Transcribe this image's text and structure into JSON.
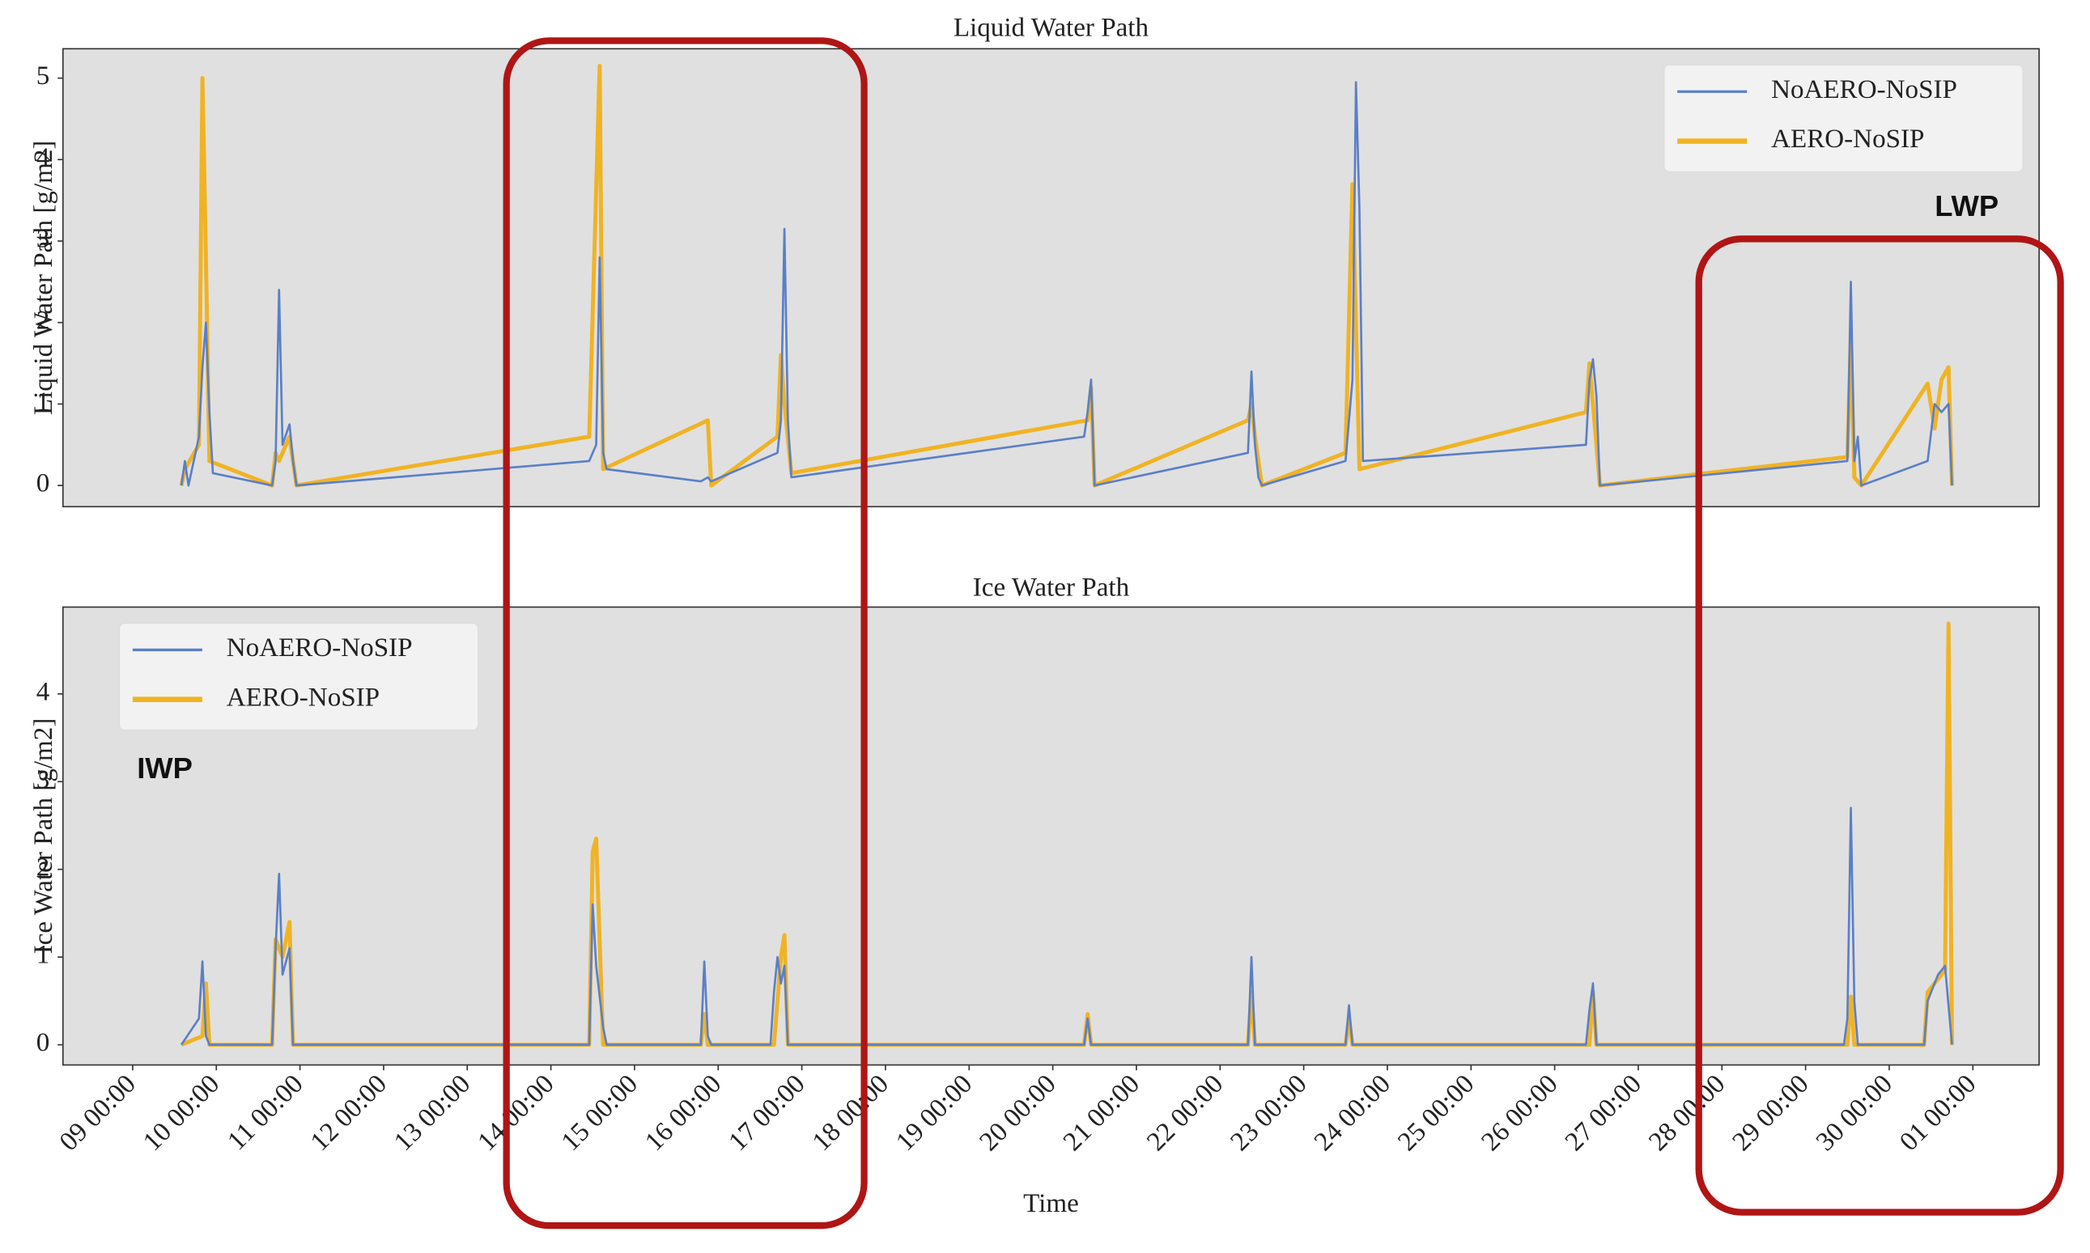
{
  "chart_data": [
    {
      "type": "line",
      "title": "Liquid Water Path",
      "y_label": "Liquid Water Path [g/m2]",
      "annotation": "LWP",
      "legend": "upper right",
      "xlim": [
        "08 04:00",
        "01 19:00"
      ],
      "ylim": [
        -0.26,
        5.36
      ],
      "yticks": [
        0,
        1,
        2,
        3,
        4,
        5
      ],
      "grid": false,
      "series": [
        {
          "name": "NoAERO-NoSIP",
          "color": "#5b7fc7",
          "x": [
            "09 14:00",
            "09 15:00",
            "09 16:00",
            "09 19:00",
            "09 20:00",
            "09 21:00",
            "09 22:00",
            "09 23:00",
            "10 16:00",
            "10 17:00",
            "10 18:00",
            "10 19:00",
            "10 21:00",
            "10 22:00",
            "10 23:00",
            "14 11:00",
            "14 13:00",
            "14 14:00",
            "14 15:00",
            "14 16:00",
            "15 19:00",
            "15 21:00",
            "15 22:00",
            "16 17:00",
            "16 18:00",
            "16 19:00",
            "16 20:00",
            "16 21:00",
            "20 09:00",
            "20 10:00",
            "20 11:00",
            "20 12:00",
            "22 08:00",
            "22 09:00",
            "22 10:00",
            "22 11:00",
            "22 12:00",
            "23 12:00",
            "23 14:00",
            "23 15:00",
            "23 16:00",
            "23 17:00",
            "26 09:00",
            "26 10:00",
            "26 11:00",
            "26 12:00",
            "26 13:00",
            "29 12:00",
            "29 13:00",
            "29 14:00",
            "29 15:00",
            "29 16:00",
            "30 11:00",
            "30 13:00",
            "30 15:00",
            "30 17:00",
            "30 18:00"
          ],
          "values": [
            0,
            0.3,
            0,
            0.6,
            1.45,
            2.0,
            0.9,
            0.15,
            0,
            0.3,
            2.4,
            0.5,
            0.75,
            0.3,
            0,
            0.3,
            0.5,
            2.8,
            0.4,
            0.2,
            0.05,
            0.1,
            0.05,
            0.4,
            0.8,
            3.15,
            0.8,
            0.1,
            0.6,
            0.9,
            1.3,
            0,
            0.4,
            1.4,
            0.5,
            0.1,
            0,
            0.3,
            1.3,
            4.95,
            3.4,
            0.3,
            0.5,
            1.3,
            1.55,
            1.1,
            0,
            0.3,
            2.5,
            0.3,
            0.6,
            0,
            0.3,
            1.0,
            0.9,
            1.0,
            0
          ]
        },
        {
          "name": "AERO-NoSIP",
          "color": "#f0b323",
          "x": [
            "09 14:00",
            "09 15:00",
            "09 19:00",
            "09 20:00",
            "09 21:00",
            "09 22:00",
            "10 16:00",
            "10 17:00",
            "10 18:00",
            "10 21:00",
            "10 23:00",
            "14 11:00",
            "14 14:00",
            "14 15:00",
            "15 21:00",
            "15 22:00",
            "16 17:00",
            "16 18:00",
            "16 19:00",
            "16 21:00",
            "20 10:00",
            "20 11:00",
            "20 12:00",
            "22 08:00",
            "22 09:00",
            "22 10:00",
            "22 12:00",
            "23 12:00",
            "23 14:00",
            "23 15:00",
            "23 16:00",
            "26 09:00",
            "26 10:00",
            "26 11:00",
            "26 13:00",
            "29 12:00",
            "29 13:00",
            "29 14:00",
            "29 16:00",
            "30 11:00",
            "30 13:00",
            "30 15:00",
            "30 17:00",
            "30 18:00"
          ],
          "values": [
            0,
            0.2,
            0.5,
            5.0,
            2.8,
            0.3,
            0,
            0.4,
            0.3,
            0.6,
            0,
            0.6,
            5.15,
            0.2,
            0.8,
            0,
            0.6,
            1.6,
            1.0,
            0.15,
            0.8,
            1.2,
            0,
            0.8,
            1.0,
            0.6,
            0,
            0.4,
            3.7,
            2.0,
            0.2,
            0.9,
            1.5,
            1.0,
            0,
            0.35,
            1.8,
            0.1,
            0,
            1.25,
            0.7,
            1.3,
            1.45,
            0
          ]
        }
      ]
    },
    {
      "type": "line",
      "title": "Ice Water Path",
      "y_label": "Ice Water Path [g/m2]",
      "x_label": "Time",
      "annotation": "IWP",
      "legend": "upper left",
      "xlim": [
        "08 04:00",
        "01 19:00"
      ],
      "ylim": [
        -0.23,
        4.99
      ],
      "yticks": [
        0,
        1,
        2,
        3,
        4
      ],
      "grid": false,
      "xticks": [
        "09 00:00",
        "10 00:00",
        "11 00:00",
        "12 00:00",
        "13 00:00",
        "14 00:00",
        "15 00:00",
        "16 00:00",
        "17 00:00",
        "18 00:00",
        "19 00:00",
        "20 00:00",
        "21 00:00",
        "22 00:00",
        "23 00:00",
        "24 00:00",
        "25 00:00",
        "26 00:00",
        "27 00:00",
        "28 00:00",
        "29 00:00",
        "30 00:00",
        "01 00:00"
      ],
      "series": [
        {
          "name": "NoAERO-NoSIP",
          "color": "#5b7fc7",
          "x": [
            "09 14:00",
            "09 19:00",
            "09 20:00",
            "09 21:00",
            "09 22:00",
            "10 16:00",
            "10 17:00",
            "10 18:00",
            "10 19:00",
            "10 21:00",
            "10 22:00",
            "14 11:00",
            "14 12:00",
            "14 13:00",
            "14 15:00",
            "14 16:00",
            "15 19:00",
            "15 20:00",
            "15 21:00",
            "15 22:00",
            "16 15:00",
            "16 16:00",
            "16 17:00",
            "16 18:00",
            "16 19:00",
            "16 20:00",
            "20 09:00",
            "20 10:00",
            "20 11:00",
            "22 08:00",
            "22 09:00",
            "22 10:00",
            "23 12:00",
            "23 13:00",
            "23 14:00",
            "26 09:00",
            "26 10:00",
            "26 11:00",
            "26 12:00",
            "29 11:00",
            "29 12:00",
            "29 13:00",
            "29 14:00",
            "29 15:00",
            "30 10:00",
            "30 11:00",
            "30 14:00",
            "30 16:00",
            "30 18:00"
          ],
          "values": [
            0,
            0.3,
            0.95,
            0.1,
            0,
            0,
            1.1,
            1.95,
            0.8,
            1.1,
            0,
            0,
            1.6,
            0.9,
            0.2,
            0,
            0,
            0.95,
            0.1,
            0,
            0,
            0.6,
            1.0,
            0.7,
            0.9,
            0,
            0,
            0.3,
            0,
            0,
            1.0,
            0,
            0,
            0.45,
            0,
            0,
            0.4,
            0.7,
            0,
            0,
            0.3,
            2.7,
            0.5,
            0,
            0,
            0.5,
            0.8,
            0.9,
            0
          ]
        },
        {
          "name": "AERO-NoSIP",
          "color": "#f0b323",
          "x": [
            "09 14:00",
            "09 20:00",
            "09 21:00",
            "09 22:00",
            "10 16:00",
            "10 17:00",
            "10 19:00",
            "10 21:00",
            "10 22:00",
            "14 11:00",
            "14 12:00",
            "14 13:00",
            "14 15:00",
            "15 19:00",
            "15 20:00",
            "15 21:00",
            "16 16:00",
            "16 18:00",
            "16 19:00",
            "16 20:00",
            "20 09:00",
            "20 10:00",
            "20 11:00",
            "22 08:00",
            "22 09:00",
            "22 10:00",
            "23 12:00",
            "23 13:00",
            "23 14:00",
            "26 10:00",
            "26 11:00",
            "26 12:00",
            "29 12:00",
            "29 13:00",
            "29 14:00",
            "30 10:00",
            "30 11:00",
            "30 16:00",
            "30 17:00",
            "30 18:00"
          ],
          "values": [
            0,
            0.1,
            0.7,
            0,
            0,
            1.2,
            1.0,
            1.4,
            0,
            0,
            2.2,
            2.35,
            0,
            0,
            0.35,
            0,
            0,
            1.0,
            1.25,
            0,
            0,
            0.35,
            0,
            0,
            0.6,
            0,
            0,
            0.3,
            0,
            0,
            0.6,
            0,
            0,
            0.55,
            0,
            0,
            0.6,
            0.85,
            4.8,
            0
          ]
        }
      ]
    }
  ]
}
